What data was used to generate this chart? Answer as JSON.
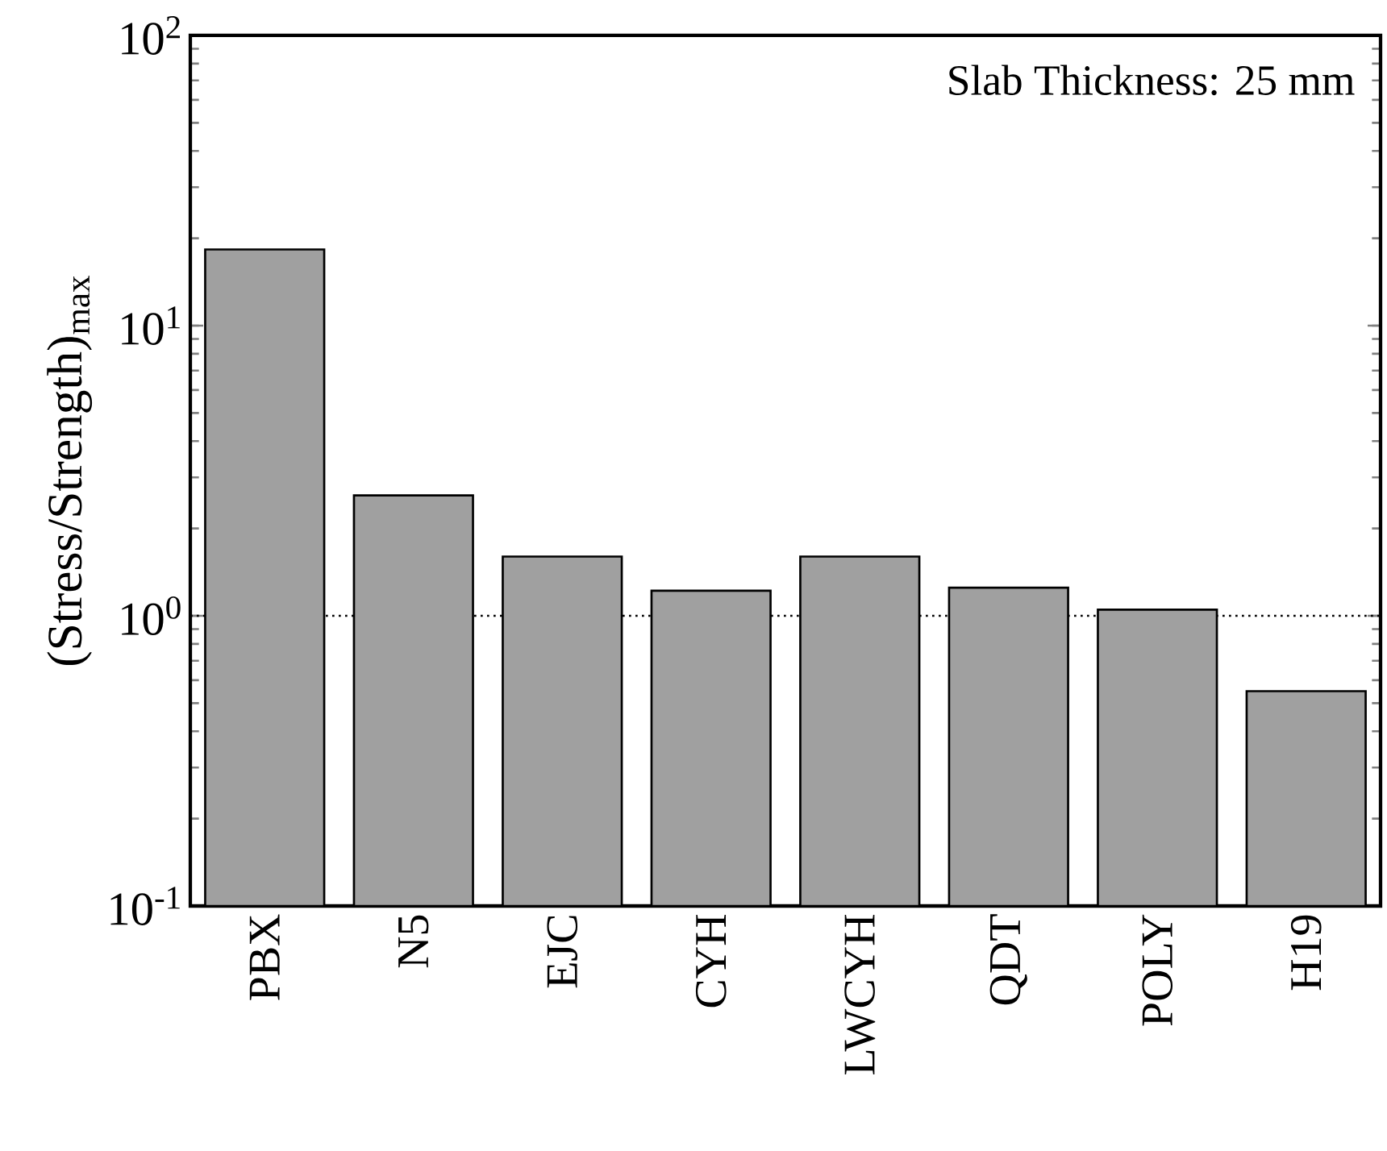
{
  "chart_data": {
    "type": "bar",
    "ylabel": "(Stress/Strength)$_{max}$",
    "categories": [
      "PBX",
      "N5",
      "EJC",
      "CYH",
      "LWCYH",
      "QDT",
      "POLY",
      "H19"
    ],
    "values": [
      18.3,
      2.6,
      1.6,
      1.22,
      1.6,
      1.25,
      1.05,
      0.55
    ],
    "color": "#a0a0a0",
    "log": true,
    "ylim": [
      0.1,
      100
    ],
    "yticks": [
      {
        "value": 0.1,
        "label": "10$^{-1}$"
      },
      {
        "value": 1,
        "label": "10$^{0}$"
      },
      {
        "value": 10,
        "label": "10$^{1}$"
      },
      {
        "value": 100,
        "label": "10$^{2}$"
      }
    ],
    "ref_lines": [
      {
        "axis": "y",
        "value": 1,
        "color": "#000000",
        "line_style": "dotted"
      }
    ],
    "annotations": [
      "Slab Thickness:  25 mm"
    ]
  }
}
